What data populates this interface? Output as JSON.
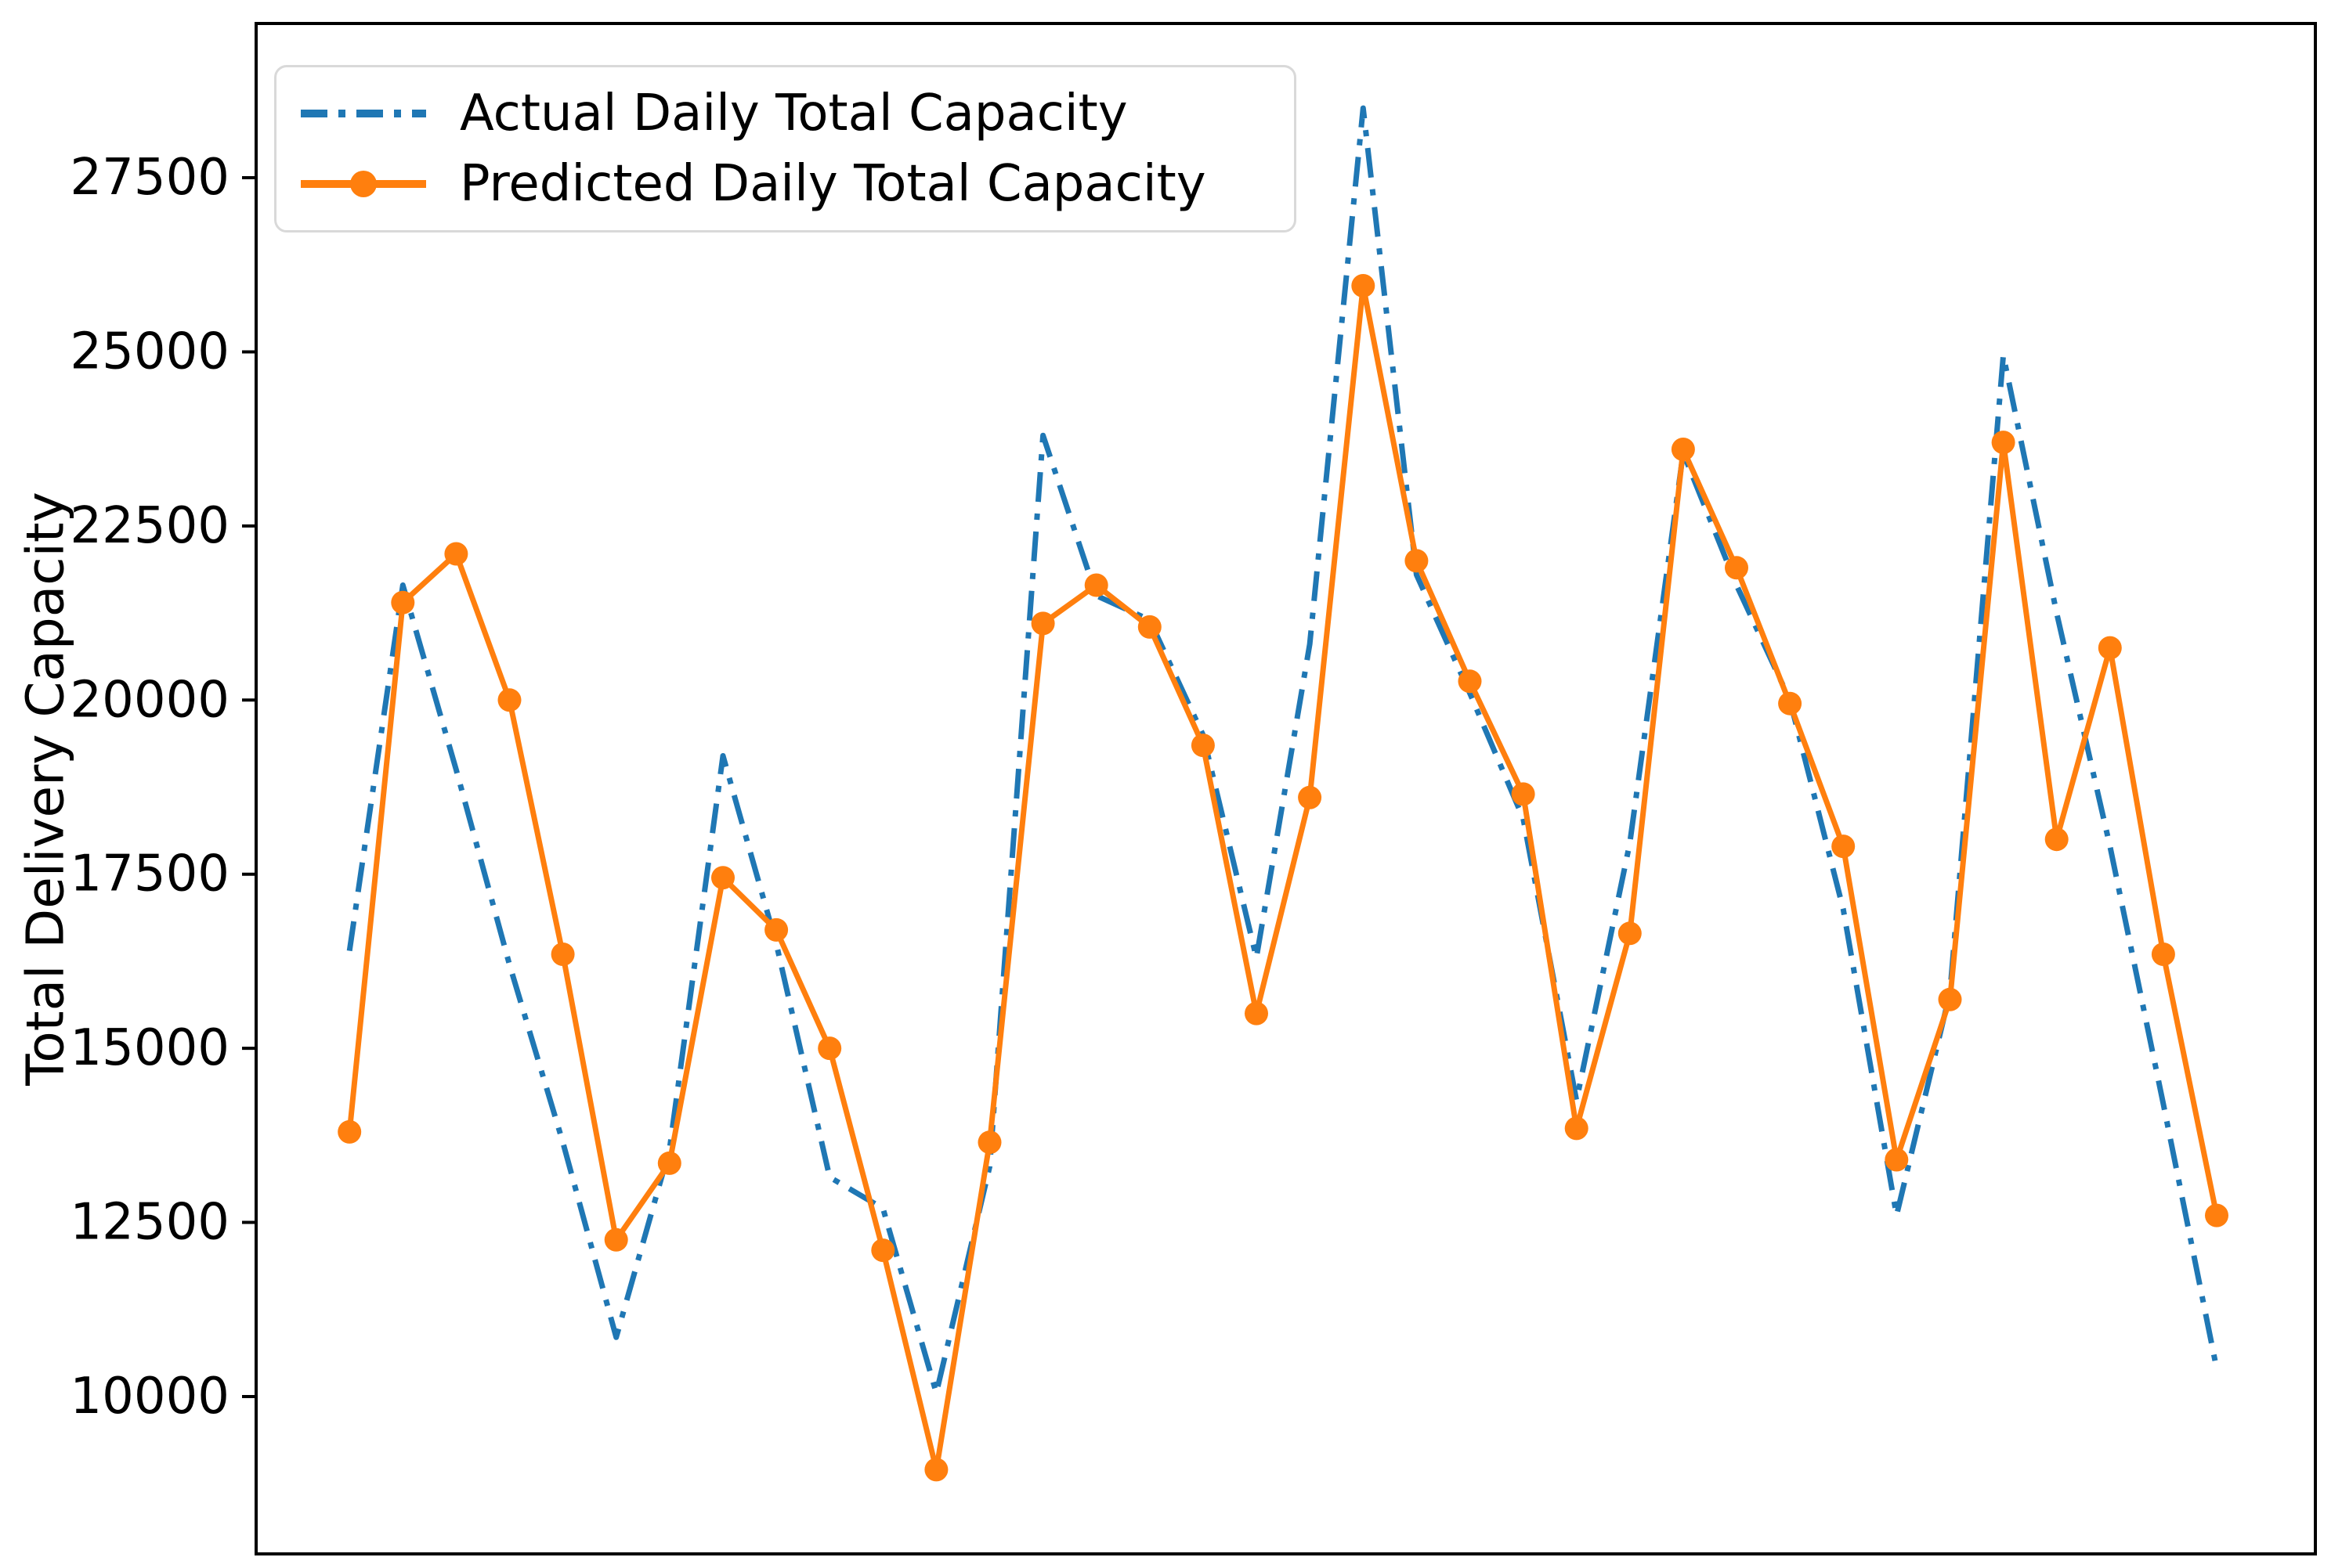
{
  "chart_data": {
    "type": "line",
    "title": "",
    "xlabel": "",
    "ylabel": "Total Delivery Capacity",
    "x": [
      1,
      2,
      3,
      4,
      5,
      6,
      7,
      8,
      9,
      10,
      11,
      12,
      13,
      14,
      15,
      16,
      17,
      18,
      19,
      20,
      21,
      22,
      23,
      24,
      25,
      26,
      27,
      28,
      29,
      30,
      31,
      32,
      33,
      34,
      35,
      36
    ],
    "x_tick_labels": [],
    "yticks": [
      10000,
      12500,
      15000,
      17500,
      20000,
      22500,
      25000,
      27500
    ],
    "ylim": [
      7740,
      29715
    ],
    "xlim": [
      -0.75,
      37.85
    ],
    "grid": false,
    "legend_position": "upper left",
    "series": [
      {
        "name": "Actual Daily Total Capacity",
        "color": "#1f77b4",
        "style": "dashdot",
        "marker": "none",
        "values": [
          16400,
          21650,
          19000,
          16200,
          13650,
          10850,
          13550,
          19200,
          16500,
          13150,
          12700,
          10050,
          13300,
          23800,
          21500,
          21150,
          19500,
          16300,
          20800,
          28500,
          21800,
          20100,
          18300,
          14250,
          17950,
          23550,
          21650,
          20000,
          17000,
          12600,
          15800,
          24950,
          21250,
          17900,
          14200,
          10400
        ]
      },
      {
        "name": "Predicted Daily Total Capacity",
        "color": "#ff7f0e",
        "style": "solid",
        "marker": "circle",
        "values": [
          13800,
          21400,
          22100,
          20000,
          16350,
          12250,
          13350,
          17450,
          16700,
          15000,
          12100,
          8950,
          13650,
          21100,
          21650,
          21050,
          19350,
          15500,
          18600,
          25950,
          22000,
          20270,
          18650,
          13850,
          16650,
          23600,
          21900,
          19950,
          17900,
          13400,
          15700,
          23700,
          18000,
          20750,
          16350,
          12600
        ]
      }
    ],
    "axis_color": "#000000",
    "tick_label_color": "#000000"
  }
}
